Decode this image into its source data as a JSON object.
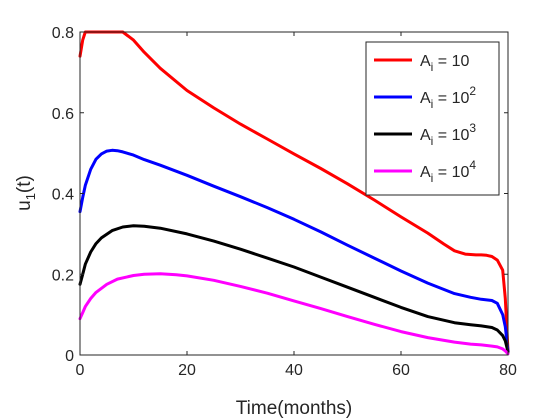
{
  "chart_data": {
    "type": "line",
    "title": "",
    "xlabel": "Time(months)",
    "ylabel_base": "u",
    "ylabel_sub": "1",
    "ylabel_tail": "(t)",
    "xlim": [
      0,
      80
    ],
    "ylim": [
      0,
      0.8
    ],
    "xticks": [
      0,
      20,
      40,
      60,
      80
    ],
    "xtick_labels": [
      "0",
      "20",
      "40",
      "60",
      "80"
    ],
    "yticks": [
      0,
      0.2,
      0.4,
      0.6,
      0.8
    ],
    "ytick_labels": [
      "0",
      "0.2",
      "0.4",
      "0.6",
      "0.8"
    ],
    "grid": false,
    "legend_position": "top-right",
    "series": [
      {
        "name_base": "A",
        "name_sub": "i",
        "name_eq": " = 10",
        "name_sup": "",
        "color": "#ff0000",
        "x": [
          0,
          0.5,
          1,
          2,
          3,
          5,
          7,
          8,
          10,
          12,
          15,
          20,
          25,
          30,
          35,
          40,
          45,
          50,
          55,
          60,
          65,
          68,
          70,
          72,
          74,
          75,
          76,
          77,
          78,
          79,
          79.5,
          80
        ],
        "y": [
          0.74,
          0.78,
          0.8,
          0.8,
          0.8,
          0.8,
          0.8,
          0.8,
          0.78,
          0.75,
          0.71,
          0.655,
          0.612,
          0.572,
          0.535,
          0.498,
          0.462,
          0.424,
          0.384,
          0.342,
          0.302,
          0.275,
          0.258,
          0.25,
          0.248,
          0.248,
          0.247,
          0.244,
          0.235,
          0.21,
          0.14,
          0.01
        ]
      },
      {
        "name_base": "A",
        "name_sub": "i",
        "name_eq": " = 10",
        "name_sup": "2",
        "color": "#0000ff",
        "x": [
          0,
          0.5,
          1,
          2,
          3,
          4,
          5,
          6,
          7,
          8,
          10,
          12,
          15,
          20,
          25,
          30,
          35,
          40,
          45,
          50,
          55,
          60,
          65,
          70,
          73,
          75,
          77,
          78,
          79,
          79.5,
          80
        ],
        "y": [
          0.355,
          0.39,
          0.42,
          0.46,
          0.485,
          0.498,
          0.505,
          0.507,
          0.506,
          0.503,
          0.495,
          0.484,
          0.47,
          0.445,
          0.418,
          0.392,
          0.365,
          0.336,
          0.305,
          0.272,
          0.24,
          0.208,
          0.178,
          0.152,
          0.143,
          0.138,
          0.135,
          0.128,
          0.1,
          0.07,
          0.01
        ]
      },
      {
        "name_base": "A",
        "name_sub": "i",
        "name_eq": " = 10",
        "name_sup": "3",
        "color": "#000000",
        "x": [
          0,
          0.5,
          1,
          2,
          3,
          4,
          6,
          8,
          10,
          12,
          15,
          20,
          25,
          30,
          35,
          40,
          45,
          50,
          55,
          60,
          65,
          70,
          73,
          75,
          77,
          78,
          79,
          79.5,
          80
        ],
        "y": [
          0.175,
          0.2,
          0.225,
          0.255,
          0.276,
          0.29,
          0.308,
          0.317,
          0.32,
          0.319,
          0.314,
          0.3,
          0.282,
          0.262,
          0.24,
          0.218,
          0.193,
          0.168,
          0.143,
          0.118,
          0.095,
          0.08,
          0.075,
          0.072,
          0.068,
          0.062,
          0.048,
          0.035,
          0.008
        ]
      },
      {
        "name_base": "A",
        "name_sub": "i",
        "name_eq": " = 10",
        "name_sup": "4",
        "color": "#ff00ff",
        "x": [
          0,
          0.5,
          1,
          2,
          3,
          5,
          7,
          10,
          12,
          15,
          18,
          20,
          25,
          30,
          35,
          40,
          45,
          50,
          55,
          60,
          65,
          70,
          73,
          75,
          77,
          78,
          79,
          79.5,
          80
        ],
        "y": [
          0.09,
          0.105,
          0.12,
          0.14,
          0.155,
          0.175,
          0.188,
          0.197,
          0.2,
          0.201,
          0.199,
          0.196,
          0.185,
          0.17,
          0.153,
          0.134,
          0.115,
          0.095,
          0.076,
          0.058,
          0.043,
          0.032,
          0.027,
          0.025,
          0.022,
          0.02,
          0.015,
          0.01,
          0.003
        ]
      }
    ]
  }
}
